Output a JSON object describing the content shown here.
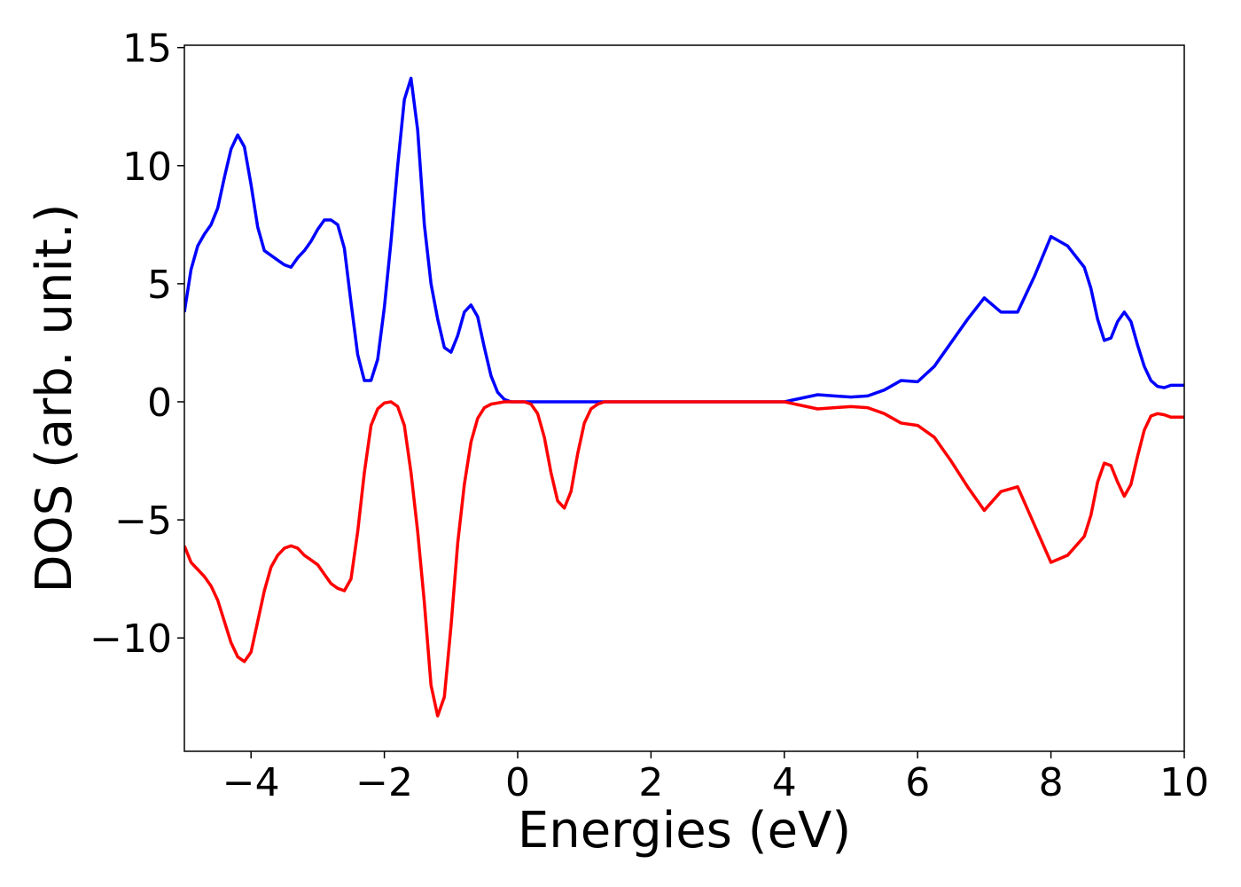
{
  "chart_data": {
    "type": "line",
    "xlabel": "Energies (eV)",
    "ylabel": "DOS (arb. unit.)",
    "xlim": [
      -5,
      10
    ],
    "ylim": [
      -14.8,
      15.1
    ],
    "xticks": [
      {
        "value": -4,
        "label": "−4"
      },
      {
        "value": -2,
        "label": "−2"
      },
      0,
      2,
      4,
      6,
      8,
      10
    ],
    "yticks": [
      {
        "value": -10,
        "label": "−10"
      },
      {
        "value": -5,
        "label": "−5"
      },
      0,
      5,
      10,
      15
    ],
    "grid": false,
    "x": [
      -5,
      -4.9,
      -4.8,
      -4.7,
      -4.6,
      -4.5,
      -4.4,
      -4.3,
      -4.2,
      -4.1,
      -4,
      -3.9,
      -3.8,
      -3.7,
      -3.6,
      -3.5,
      -3.4,
      -3.3,
      -3.2,
      -3.1,
      -3,
      -2.9,
      -2.8,
      -2.7,
      -2.6,
      -2.5,
      -2.4,
      -2.3,
      -2.2,
      -2.1,
      -2,
      -1.9,
      -1.8,
      -1.7,
      -1.6,
      -1.5,
      -1.4,
      -1.3,
      -1.2,
      -1.1,
      -1,
      -0.9,
      -0.8,
      -0.7,
      -0.6,
      -0.5,
      -0.4,
      -0.3,
      -0.2,
      -0.1,
      0,
      0.1,
      0.2,
      0.3,
      0.4,
      0.5,
      0.6,
      0.7,
      0.8,
      0.9,
      1,
      1.1,
      1.2,
      1.3,
      1.4,
      1.5,
      1.75,
      2,
      2.25,
      2.5,
      2.75,
      3,
      3.25,
      3.5,
      3.75,
      4,
      4.25,
      4.5,
      4.75,
      5,
      5.25,
      5.5,
      5.75,
      6,
      6.25,
      6.5,
      6.75,
      7,
      7.25,
      7.5,
      7.75,
      8,
      8.25,
      8.5,
      8.6,
      8.7,
      8.8,
      8.9,
      9,
      9.1,
      9.2,
      9.3,
      9.4,
      9.5,
      9.6,
      9.7,
      9.8,
      9.9,
      10
    ],
    "series": [
      {
        "color": "#0000ff",
        "values": [
          3.8,
          5.6,
          6.6,
          7.1,
          7.5,
          8.2,
          9.5,
          10.7,
          11.3,
          10.8,
          9.2,
          7.4,
          6.4,
          6.2,
          6.0,
          5.8,
          5.7,
          6.1,
          6.4,
          6.8,
          7.3,
          7.7,
          7.7,
          7.5,
          6.5,
          4.2,
          2.0,
          0.9,
          0.9,
          1.8,
          4.0,
          6.8,
          10.0,
          12.8,
          13.7,
          11.5,
          7.5,
          5.0,
          3.5,
          2.3,
          2.1,
          2.8,
          3.8,
          4.1,
          3.6,
          2.3,
          1.1,
          0.4,
          0.1,
          0,
          0,
          0,
          0,
          0,
          0,
          0,
          0,
          0,
          0,
          0,
          0,
          0,
          0,
          0,
          0,
          0,
          0,
          0,
          0,
          0,
          0,
          0,
          0,
          0,
          0,
          0,
          0.15,
          0.3,
          0.25,
          0.2,
          0.25,
          0.5,
          0.9,
          0.85,
          1.5,
          2.5,
          3.5,
          4.4,
          3.8,
          3.8,
          5.3,
          7.0,
          6.6,
          5.7,
          4.8,
          3.5,
          2.6,
          2.7,
          3.4,
          3.8,
          3.4,
          2.4,
          1.5,
          0.9,
          0.65,
          0.6,
          0.7,
          0.7,
          0.7
        ]
      },
      {
        "color": "#ff0000",
        "values": [
          -6.1,
          -6.8,
          -7.1,
          -7.4,
          -7.8,
          -8.4,
          -9.3,
          -10.2,
          -10.8,
          -11.0,
          -10.6,
          -9.3,
          -8.0,
          -7.0,
          -6.5,
          -6.2,
          -6.1,
          -6.2,
          -6.5,
          -6.7,
          -6.9,
          -7.3,
          -7.7,
          -7.9,
          -8.0,
          -7.5,
          -5.5,
          -3.0,
          -1.0,
          -0.3,
          -0.05,
          0,
          -0.2,
          -1.0,
          -3.0,
          -5.5,
          -8.5,
          -12,
          -13.3,
          -12.5,
          -9.5,
          -6,
          -3.5,
          -1.7,
          -0.7,
          -0.25,
          -0.1,
          -0.05,
          0,
          0,
          0,
          0,
          -0.1,
          -0.5,
          -1.5,
          -3.0,
          -4.2,
          -4.5,
          -3.8,
          -2.2,
          -0.9,
          -0.3,
          -0.1,
          0,
          0,
          0,
          0,
          0,
          0,
          0,
          0,
          0,
          0,
          0,
          0,
          0,
          -0.15,
          -0.3,
          -0.25,
          -0.2,
          -0.25,
          -0.5,
          -0.9,
          -1.0,
          -1.5,
          -2.5,
          -3.6,
          -4.6,
          -3.8,
          -3.6,
          -5.2,
          -6.8,
          -6.5,
          -5.7,
          -4.8,
          -3.4,
          -2.6,
          -2.7,
          -3.4,
          -4.0,
          -3.5,
          -2.3,
          -1.2,
          -0.6,
          -0.5,
          -0.55,
          -0.65,
          -0.65,
          -0.65
        ]
      }
    ]
  }
}
